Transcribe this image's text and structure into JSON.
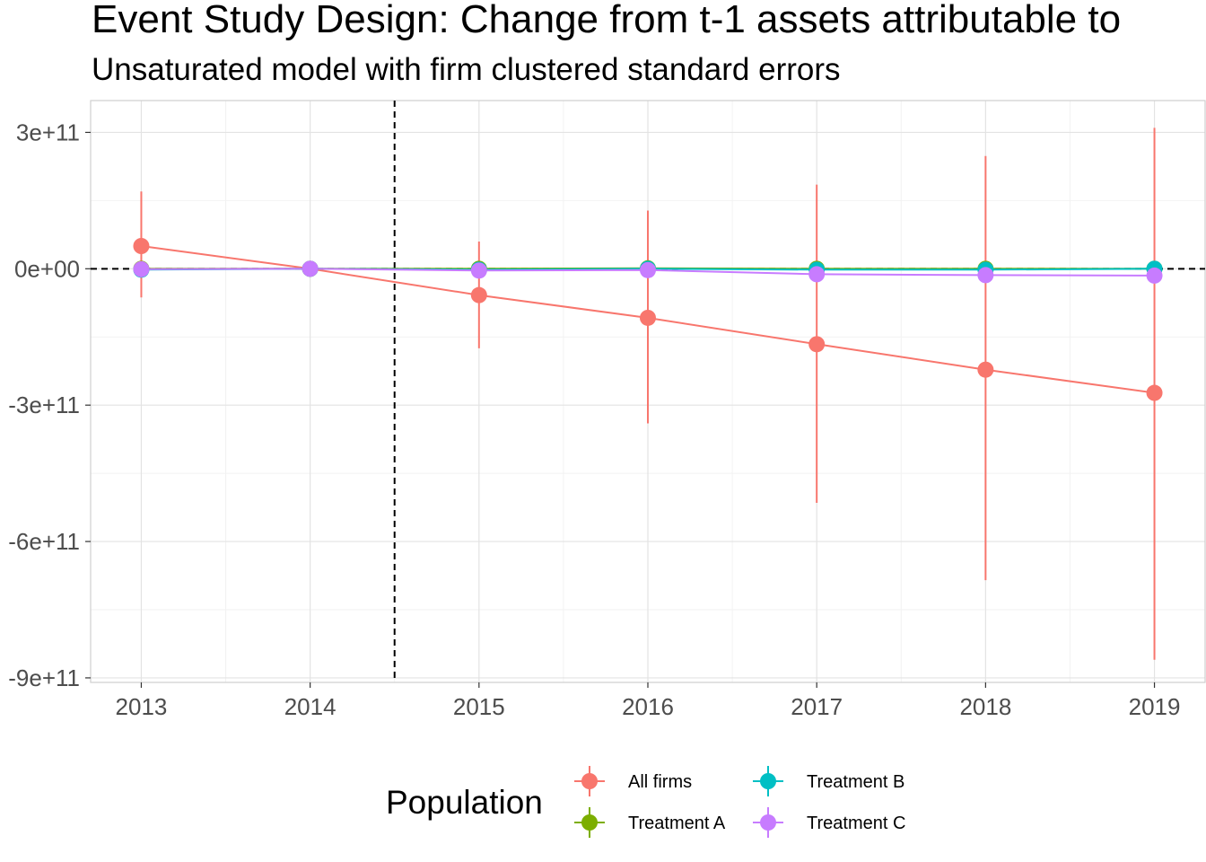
{
  "chart_data": {
    "type": "line",
    "title": "Event Study Design: Change from t-1 assets attributable to",
    "subtitle": "Unsaturated model with firm clustered standard errors",
    "xlabel": "",
    "ylabel": "",
    "x": [
      2013,
      2014,
      2015,
      2016,
      2017,
      2018,
      2019
    ],
    "x_tick_labels": [
      "2013",
      "2014",
      "2015",
      "2016",
      "2017",
      "2018",
      "2019"
    ],
    "xlim": [
      2012.7,
      2019.3
    ],
    "ylim": [
      -910000000000.0,
      370000000000.0
    ],
    "y_ticks": [
      300000000000.0,
      0,
      -300000000000.0,
      -600000000000.0,
      -900000000000.0
    ],
    "y_tick_labels": [
      "3e+11",
      "0e+00",
      "-3e+11",
      "-6e+11",
      "-9e+11"
    ],
    "reference_lines": {
      "horizontal_y": 0,
      "vertical_x": 2014.5,
      "style": "dashed"
    },
    "grid": true,
    "legend": {
      "title": "Population",
      "position": "bottom"
    },
    "series": [
      {
        "name": "All firms",
        "color": "#F8766D",
        "values": [
          50000000000.0,
          0,
          -58000000000.0,
          -108000000000.0,
          -166000000000.0,
          -222000000000.0,
          -273000000000.0
        ],
        "lower": [
          -63000000000.0,
          0,
          -175000000000.0,
          -340000000000.0,
          -515000000000.0,
          -685000000000.0,
          -860000000000.0
        ],
        "upper": [
          170000000000.0,
          0,
          60000000000.0,
          128000000000.0,
          185000000000.0,
          248000000000.0,
          310000000000.0
        ]
      },
      {
        "name": "Treatment A",
        "color": "#7CAE00",
        "values": [
          0,
          0,
          0,
          1000000000.0,
          0,
          0,
          0
        ],
        "lower": [
          -2000000000.0,
          0,
          -3000000000.0,
          -3000000000.0,
          -4000000000.0,
          -4000000000.0,
          -4000000000.0
        ],
        "upper": [
          2000000000.0,
          0,
          3000000000.0,
          5000000000.0,
          4000000000.0,
          4000000000.0,
          4000000000.0
        ]
      },
      {
        "name": "Treatment B",
        "color": "#00BFC4",
        "values": [
          -2000000000.0,
          0,
          -2000000000.0,
          0,
          -2000000000.0,
          -2000000000.0,
          0
        ],
        "lower": [
          -5000000000.0,
          0,
          -5000000000.0,
          -4000000000.0,
          -6000000000.0,
          -6000000000.0,
          -5000000000.0
        ],
        "upper": [
          1000000000.0,
          0,
          1000000000.0,
          4000000000.0,
          2000000000.0,
          2000000000.0,
          5000000000.0
        ]
      },
      {
        "name": "Treatment C",
        "color": "#C77CFF",
        "values": [
          -1000000000.0,
          0,
          -4000000000.0,
          -3000000000.0,
          -12000000000.0,
          -14000000000.0,
          -15000000000.0
        ],
        "lower": [
          -4000000000.0,
          0,
          -8000000000.0,
          -7000000000.0,
          -17000000000.0,
          -19000000000.0,
          -21000000000.0
        ],
        "upper": [
          2000000000.0,
          0,
          0,
          1000000000.0,
          -7000000000.0,
          -9000000000.0,
          -9000000000.0
        ]
      }
    ]
  }
}
